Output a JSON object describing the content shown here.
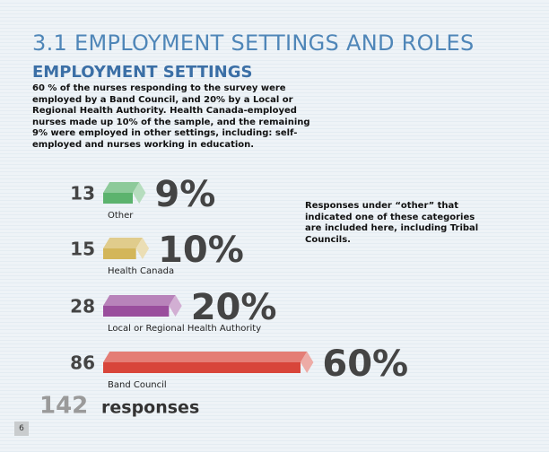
{
  "chart_data": {
    "type": "bar",
    "title": "3.1 EMPLOYMENT SETTINGS AND ROLES",
    "subtitle": "EMPLOYMENT SETTINGS",
    "description": "60 % of the nurses responding to the survey were employed by a Band Council, and 20% by a Local or Regional Health Authority. Health Canada-employed nurses made up 10% of the sample, and the remaining 9% were employed in other settings, including: self-employed and nurses working in education.",
    "annotation": "Responses under “other” that indicated one of these categories are included here, including Tribal Councils.",
    "categories": [
      "Other",
      "Health Canada",
      "Local or Regional Health Authority",
      "Band Council"
    ],
    "counts": [
      13,
      15,
      28,
      86
    ],
    "values": [
      9,
      10,
      20,
      60
    ],
    "value_labels": [
      "9%",
      "10%",
      "20%",
      "60%"
    ],
    "colors": [
      "#5cb36e",
      "#d3b65a",
      "#9a4e9d",
      "#d8453a"
    ],
    "total": 142,
    "total_label": "responses"
  },
  "page_number": "6"
}
